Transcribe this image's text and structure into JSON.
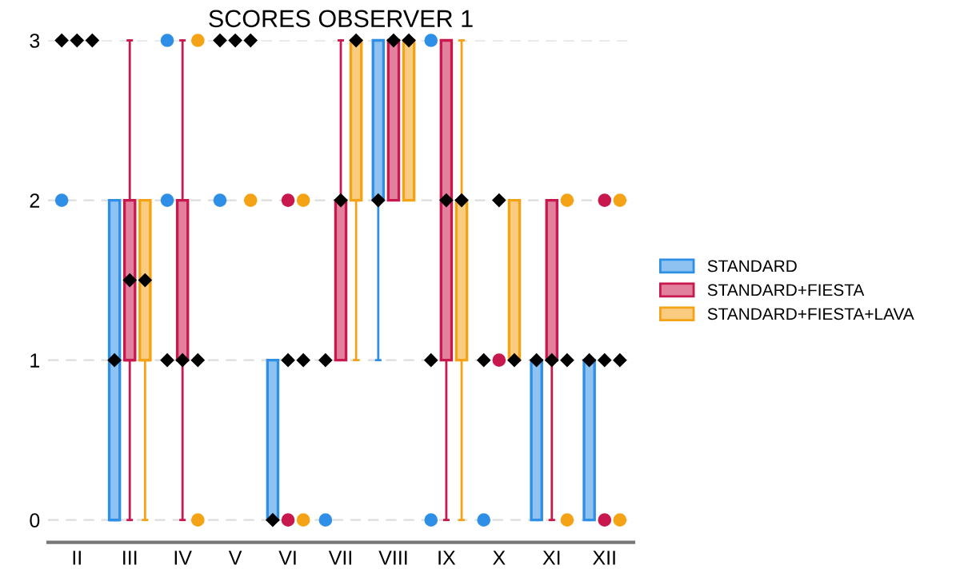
{
  "chart_data": {
    "type": "box",
    "title": "SCORES OBSERVER 1",
    "categories": [
      "II",
      "III",
      "IV",
      "V",
      "VI",
      "VII",
      "VIII",
      "IX",
      "X",
      "XI",
      "XII"
    ],
    "ylim": [
      -0.14,
      3
    ],
    "yticks": [
      0,
      1,
      2,
      3
    ],
    "grid": "y",
    "legend": "right",
    "series": [
      {
        "name": "STANDARD",
        "color": "#2f8fe6",
        "boxes": [
          {
            "low": 3,
            "q1": 3,
            "median": 3,
            "q3": 3,
            "high": 3,
            "mean": 3,
            "outliers": [
              2
            ]
          },
          {
            "low": 0,
            "q1": 0,
            "median": 0,
            "q3": 2,
            "high": 2,
            "mean": 1
          },
          {
            "low": 1,
            "q1": 1,
            "median": 1,
            "q3": 1,
            "high": 1,
            "mean": 1,
            "outliers": [
              2,
              3
            ]
          },
          {
            "low": 3,
            "q1": 3,
            "median": 3,
            "q3": 3,
            "high": 3,
            "mean": 3,
            "outliers": [
              2
            ]
          },
          {
            "low": 0,
            "q1": 0,
            "median": 0,
            "q3": 1,
            "high": 1,
            "mean": 0
          },
          {
            "low": 1,
            "q1": 1,
            "median": 1,
            "q3": 1,
            "high": 1,
            "mean": 1,
            "outliers": [
              0
            ]
          },
          {
            "low": 1,
            "q1": 2,
            "median": 2,
            "q3": 3,
            "high": 3,
            "mean": 2
          },
          {
            "low": 1,
            "q1": 1,
            "median": 1,
            "q3": 1,
            "high": 1,
            "mean": 1,
            "outliers": [
              3,
              0
            ]
          },
          {
            "low": 1,
            "q1": 1,
            "median": 1,
            "q3": 1,
            "high": 1,
            "mean": 1,
            "outliers": [
              0
            ]
          },
          {
            "low": 0,
            "q1": 0,
            "median": 1,
            "q3": 1,
            "high": 1,
            "mean": 1
          },
          {
            "low": 0,
            "q1": 0,
            "median": 1,
            "q3": 1,
            "high": 1,
            "mean": 1
          }
        ]
      },
      {
        "name": "STANDARD+FIESTA",
        "color": "#c8194f",
        "boxes": [
          {
            "low": 3,
            "q1": 3,
            "median": 3,
            "q3": 3,
            "high": 3,
            "mean": 3
          },
          {
            "low": 0,
            "q1": 1,
            "median": 1,
            "q3": 2,
            "high": 3,
            "mean": 1.5
          },
          {
            "low": 0,
            "q1": 1,
            "median": 1,
            "q3": 2,
            "high": 3,
            "mean": 1
          },
          {
            "low": 3,
            "q1": 3,
            "median": 3,
            "q3": 3,
            "high": 3,
            "mean": 3
          },
          {
            "low": 1,
            "q1": 1,
            "median": 1,
            "q3": 1,
            "high": 1,
            "mean": 1,
            "outliers": [
              2,
              0
            ]
          },
          {
            "low": 1,
            "q1": 1,
            "median": 2,
            "q3": 2,
            "high": 3,
            "mean": 2
          },
          {
            "low": 2,
            "q1": 2,
            "median": 3,
            "q3": 3,
            "high": 3,
            "mean": 3
          },
          {
            "low": 0,
            "q1": 1,
            "median": 2,
            "q3": 3,
            "high": 3,
            "mean": 2
          },
          {
            "low": 2,
            "q1": 2,
            "median": 2,
            "q3": 2,
            "high": 2,
            "mean": 2,
            "outliers": [
              1
            ]
          },
          {
            "low": 0,
            "q1": 1,
            "median": 1,
            "q3": 2,
            "high": 2,
            "mean": 1
          },
          {
            "low": 1,
            "q1": 1,
            "median": 1,
            "q3": 1,
            "high": 1,
            "mean": 1,
            "outliers": [
              2,
              0
            ]
          }
        ]
      },
      {
        "name": "STANDARD+FIESTA+LAVA",
        "color": "#f5a316",
        "boxes": [
          {
            "low": 3,
            "q1": 3,
            "median": 3,
            "q3": 3,
            "high": 3,
            "mean": 3
          },
          {
            "low": 0,
            "q1": 1,
            "median": 1,
            "q3": 2,
            "high": 2,
            "mean": 1.5
          },
          {
            "low": 1,
            "q1": 1,
            "median": 1,
            "q3": 1,
            "high": 1,
            "mean": 1,
            "outliers": [
              3,
              0
            ]
          },
          {
            "low": 3,
            "q1": 3,
            "median": 3,
            "q3": 3,
            "high": 3,
            "mean": 3,
            "outliers": [
              2
            ]
          },
          {
            "low": 1,
            "q1": 1,
            "median": 1,
            "q3": 1,
            "high": 1,
            "mean": 1,
            "outliers": [
              2,
              0
            ]
          },
          {
            "low": 1,
            "q1": 2,
            "median": 3,
            "q3": 3,
            "high": 3,
            "mean": 3
          },
          {
            "low": 2,
            "q1": 2,
            "median": 3,
            "q3": 3,
            "high": 3,
            "mean": 3
          },
          {
            "low": 0,
            "q1": 1,
            "median": 2,
            "q3": 2,
            "high": 3,
            "mean": 2
          },
          {
            "low": 1,
            "q1": 1,
            "median": 1,
            "q3": 2,
            "high": 2,
            "mean": 1
          },
          {
            "low": 1,
            "q1": 1,
            "median": 1,
            "q3": 1,
            "high": 1,
            "mean": 1,
            "outliers": [
              2,
              0
            ]
          },
          {
            "low": 1,
            "q1": 1,
            "median": 1,
            "q3": 1,
            "high": 1,
            "mean": 1,
            "outliers": [
              2,
              0
            ]
          }
        ]
      }
    ]
  }
}
